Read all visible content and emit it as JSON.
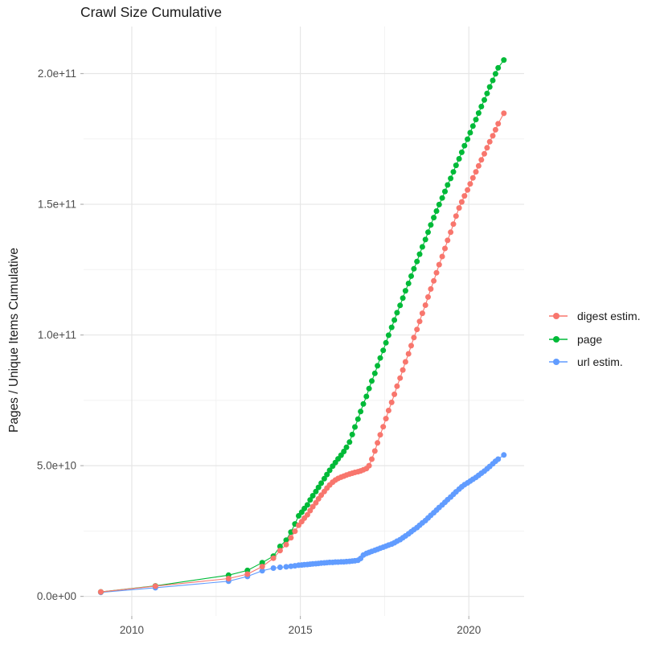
{
  "page": {
    "title": "Crawl Size Cumulative"
  },
  "y_axis_title": "Pages / Unique Items Cumulative",
  "legend": {
    "items": [
      {
        "label": "digest estim.",
        "color": "#F8766D"
      },
      {
        "label": "page",
        "color": "#00BA38"
      },
      {
        "label": "url estim.",
        "color": "#619CFF"
      }
    ]
  },
  "chart_data": {
    "type": "scatter",
    "title": "Crawl Size Cumulative",
    "xlabel": "",
    "ylabel": "Pages / Unique Items Cumulative",
    "legend_position": "right",
    "grid": "on",
    "values_unit": "1e9 (billions of pages / unique items)",
    "xlim": [
      2008.57,
      2021.64
    ],
    "ylim_e9": [
      -7.5,
      218
    ],
    "x_ticks": [
      {
        "label": "2010",
        "year": 2010
      },
      {
        "label": "2015",
        "year": 2015
      },
      {
        "label": "2020",
        "year": 2020
      }
    ],
    "x_minor": [
      2012.5,
      2017.5
    ],
    "y_ticks": [
      {
        "label": "0.0e+00",
        "value_e9": 0
      },
      {
        "label": "5.0e+10",
        "value_e9": 50
      },
      {
        "label": "1.0e+11",
        "value_e9": 100
      },
      {
        "label": "1.5e+11",
        "value_e9": 150
      },
      {
        "label": "2.0e+11",
        "value_e9": 200
      }
    ],
    "y_minor": [
      25,
      75,
      125,
      175
    ],
    "colors": {
      "major_grid": "#e6e6e6",
      "minor_grid": "#f2f2f2",
      "tick": "#b3b3b3",
      "axis_text": "#4d4d4d"
    },
    "series": [
      {
        "name": "url estim.",
        "color": "#619CFF",
        "points": [
          [
            2009.08,
            1.5
          ],
          [
            2010.7,
            3.3
          ],
          [
            2012.87,
            5.8
          ],
          [
            2013.43,
            7.6
          ],
          [
            2013.87,
            9.8
          ],
          [
            2014.2,
            10.8
          ],
          [
            2014.4,
            11.1
          ],
          [
            2014.58,
            11.3
          ],
          [
            2014.72,
            11.5
          ],
          [
            2014.84,
            11.7
          ],
          [
            2014.95,
            11.9
          ],
          [
            2015.04,
            12.0
          ],
          [
            2015.12,
            12.1
          ],
          [
            2015.21,
            12.2
          ],
          [
            2015.29,
            12.3
          ],
          [
            2015.37,
            12.4
          ],
          [
            2015.46,
            12.5
          ],
          [
            2015.54,
            12.6
          ],
          [
            2015.62,
            12.7
          ],
          [
            2015.71,
            12.8
          ],
          [
            2015.79,
            12.9
          ],
          [
            2015.87,
            13.0
          ],
          [
            2015.96,
            13.0
          ],
          [
            2016.04,
            13.1
          ],
          [
            2016.12,
            13.1
          ],
          [
            2016.21,
            13.2
          ],
          [
            2016.29,
            13.2
          ],
          [
            2016.37,
            13.3
          ],
          [
            2016.46,
            13.4
          ],
          [
            2016.54,
            13.5
          ],
          [
            2016.62,
            13.6
          ],
          [
            2016.71,
            13.8
          ],
          [
            2016.79,
            14.5
          ],
          [
            2016.87,
            15.8
          ],
          [
            2016.96,
            16.4
          ],
          [
            2017.04,
            16.8
          ],
          [
            2017.12,
            17.2
          ],
          [
            2017.21,
            17.6
          ],
          [
            2017.29,
            18.0
          ],
          [
            2017.37,
            18.4
          ],
          [
            2017.46,
            18.8
          ],
          [
            2017.54,
            19.2
          ],
          [
            2017.62,
            19.6
          ],
          [
            2017.71,
            20.0
          ],
          [
            2017.79,
            20.5
          ],
          [
            2017.87,
            21.1
          ],
          [
            2017.96,
            21.7
          ],
          [
            2018.04,
            22.4
          ],
          [
            2018.12,
            23.1
          ],
          [
            2018.21,
            23.9
          ],
          [
            2018.29,
            24.7
          ],
          [
            2018.37,
            25.5
          ],
          [
            2018.46,
            26.3
          ],
          [
            2018.54,
            27.2
          ],
          [
            2018.62,
            28.1
          ],
          [
            2018.71,
            29.0
          ],
          [
            2018.79,
            30.0
          ],
          [
            2018.87,
            31.0
          ],
          [
            2018.96,
            32.0
          ],
          [
            2019.04,
            33.0
          ],
          [
            2019.12,
            34.0
          ],
          [
            2019.21,
            35.0
          ],
          [
            2019.29,
            36.0
          ],
          [
            2019.37,
            37.0
          ],
          [
            2019.46,
            38.0
          ],
          [
            2019.54,
            39.0
          ],
          [
            2019.62,
            40.0
          ],
          [
            2019.71,
            41.0
          ],
          [
            2019.79,
            41.9
          ],
          [
            2019.87,
            42.7
          ],
          [
            2019.96,
            43.4
          ],
          [
            2020.04,
            44.1
          ],
          [
            2020.12,
            44.8
          ],
          [
            2020.21,
            45.5
          ],
          [
            2020.29,
            46.3
          ],
          [
            2020.37,
            47.1
          ],
          [
            2020.46,
            47.9
          ],
          [
            2020.54,
            48.8
          ],
          [
            2020.62,
            49.7
          ],
          [
            2020.71,
            50.7
          ],
          [
            2020.79,
            51.7
          ],
          [
            2020.87,
            52.5
          ],
          [
            2021.04,
            54.1
          ]
        ]
      },
      {
        "name": "page",
        "color": "#00BA38",
        "points": [
          [
            2009.08,
            1.7
          ],
          [
            2010.7,
            4.0
          ],
          [
            2012.87,
            8.1
          ],
          [
            2013.43,
            9.9
          ],
          [
            2013.87,
            12.9
          ],
          [
            2014.2,
            15.4
          ],
          [
            2014.4,
            19.1
          ],
          [
            2014.58,
            21.5
          ],
          [
            2014.72,
            24.6
          ],
          [
            2014.84,
            27.7
          ],
          [
            2014.95,
            30.8
          ],
          [
            2015.04,
            32.2
          ],
          [
            2015.12,
            33.6
          ],
          [
            2015.21,
            35.0
          ],
          [
            2015.29,
            36.9
          ],
          [
            2015.37,
            38.5
          ],
          [
            2015.46,
            40.1
          ],
          [
            2015.54,
            41.7
          ],
          [
            2015.62,
            43.3
          ],
          [
            2015.71,
            45.0
          ],
          [
            2015.79,
            46.6
          ],
          [
            2015.87,
            48.2
          ],
          [
            2015.96,
            49.8
          ],
          [
            2016.04,
            51.2
          ],
          [
            2016.12,
            52.6
          ],
          [
            2016.21,
            54.0
          ],
          [
            2016.29,
            55.4
          ],
          [
            2016.37,
            57.0
          ],
          [
            2016.46,
            59.0
          ],
          [
            2016.54,
            61.9
          ],
          [
            2016.62,
            64.8
          ],
          [
            2016.71,
            67.8
          ],
          [
            2016.79,
            70.7
          ],
          [
            2016.87,
            73.6
          ],
          [
            2016.96,
            76.5
          ],
          [
            2017.04,
            79.5
          ],
          [
            2017.12,
            82.4
          ],
          [
            2017.21,
            85.3
          ],
          [
            2017.29,
            88.2
          ],
          [
            2017.37,
            91.2
          ],
          [
            2017.46,
            94.1
          ],
          [
            2017.54,
            97.0
          ],
          [
            2017.62,
            99.9
          ],
          [
            2017.71,
            102.9
          ],
          [
            2017.79,
            105.7
          ],
          [
            2017.87,
            108.5
          ],
          [
            2017.96,
            111.3
          ],
          [
            2018.04,
            114.1
          ],
          [
            2018.12,
            116.9
          ],
          [
            2018.21,
            119.7
          ],
          [
            2018.29,
            122.5
          ],
          [
            2018.37,
            125.3
          ],
          [
            2018.46,
            128.1
          ],
          [
            2018.54,
            130.9
          ],
          [
            2018.62,
            133.7
          ],
          [
            2018.71,
            136.5
          ],
          [
            2018.79,
            139.3
          ],
          [
            2018.87,
            142.1
          ],
          [
            2018.96,
            144.9
          ],
          [
            2019.04,
            147.4
          ],
          [
            2019.12,
            149.9
          ],
          [
            2019.21,
            152.4
          ],
          [
            2019.29,
            154.9
          ],
          [
            2019.37,
            157.4
          ],
          [
            2019.46,
            159.9
          ],
          [
            2019.54,
            162.4
          ],
          [
            2019.62,
            164.9
          ],
          [
            2019.71,
            167.4
          ],
          [
            2019.79,
            169.9
          ],
          [
            2019.87,
            172.4
          ],
          [
            2019.96,
            174.9
          ],
          [
            2020.04,
            177.4
          ],
          [
            2020.12,
            179.9
          ],
          [
            2020.21,
            182.4
          ],
          [
            2020.29,
            184.9
          ],
          [
            2020.37,
            187.4
          ],
          [
            2020.46,
            189.9
          ],
          [
            2020.54,
            192.4
          ],
          [
            2020.62,
            194.9
          ],
          [
            2020.71,
            197.4
          ],
          [
            2020.79,
            199.9
          ],
          [
            2020.87,
            202.2
          ],
          [
            2021.04,
            205.2
          ]
        ]
      },
      {
        "name": "digest estim.",
        "color": "#F8766D",
        "points": [
          [
            2009.08,
            1.7
          ],
          [
            2010.7,
            3.9
          ],
          [
            2012.87,
            6.8
          ],
          [
            2013.43,
            8.5
          ],
          [
            2013.87,
            11.4
          ],
          [
            2014.2,
            14.6
          ],
          [
            2014.4,
            17.5
          ],
          [
            2014.58,
            19.8
          ],
          [
            2014.72,
            22.4
          ],
          [
            2014.84,
            24.9
          ],
          [
            2014.95,
            27.2
          ],
          [
            2015.04,
            28.6
          ],
          [
            2015.12,
            29.9
          ],
          [
            2015.21,
            31.2
          ],
          [
            2015.29,
            32.8
          ],
          [
            2015.37,
            34.3
          ],
          [
            2015.46,
            35.8
          ],
          [
            2015.54,
            37.3
          ],
          [
            2015.62,
            38.7
          ],
          [
            2015.71,
            40.1
          ],
          [
            2015.79,
            41.4
          ],
          [
            2015.87,
            42.6
          ],
          [
            2015.96,
            43.7
          ],
          [
            2016.04,
            44.5
          ],
          [
            2016.12,
            45.1
          ],
          [
            2016.21,
            45.6
          ],
          [
            2016.29,
            46.0
          ],
          [
            2016.37,
            46.4
          ],
          [
            2016.46,
            46.8
          ],
          [
            2016.54,
            47.1
          ],
          [
            2016.62,
            47.4
          ],
          [
            2016.71,
            47.7
          ],
          [
            2016.79,
            48.0
          ],
          [
            2016.87,
            48.4
          ],
          [
            2016.96,
            48.9
          ],
          [
            2017.04,
            50.0
          ],
          [
            2017.12,
            52.5
          ],
          [
            2017.21,
            55.6
          ],
          [
            2017.29,
            58.7
          ],
          [
            2017.37,
            61.8
          ],
          [
            2017.46,
            64.9
          ],
          [
            2017.54,
            68.0
          ],
          [
            2017.62,
            71.1
          ],
          [
            2017.71,
            74.2
          ],
          [
            2017.79,
            77.3
          ],
          [
            2017.87,
            80.4
          ],
          [
            2017.96,
            83.5
          ],
          [
            2018.04,
            86.6
          ],
          [
            2018.12,
            89.7
          ],
          [
            2018.21,
            92.8
          ],
          [
            2018.29,
            95.9
          ],
          [
            2018.37,
            99.0
          ],
          [
            2018.46,
            102.1
          ],
          [
            2018.54,
            105.2
          ],
          [
            2018.62,
            108.3
          ],
          [
            2018.71,
            111.4
          ],
          [
            2018.79,
            114.5
          ],
          [
            2018.87,
            117.6
          ],
          [
            2018.96,
            120.7
          ],
          [
            2019.04,
            123.8
          ],
          [
            2019.12,
            126.9
          ],
          [
            2019.21,
            130.0
          ],
          [
            2019.29,
            133.1
          ],
          [
            2019.37,
            136.2
          ],
          [
            2019.46,
            139.3
          ],
          [
            2019.54,
            142.4
          ],
          [
            2019.62,
            145.5
          ],
          [
            2019.71,
            148.6
          ],
          [
            2019.79,
            150.9
          ],
          [
            2019.87,
            153.2
          ],
          [
            2019.96,
            155.5
          ],
          [
            2020.04,
            157.8
          ],
          [
            2020.12,
            160.1
          ],
          [
            2020.21,
            162.4
          ],
          [
            2020.29,
            164.7
          ],
          [
            2020.37,
            167.0
          ],
          [
            2020.46,
            169.3
          ],
          [
            2020.54,
            171.6
          ],
          [
            2020.62,
            173.9
          ],
          [
            2020.71,
            176.2
          ],
          [
            2020.79,
            178.5
          ],
          [
            2020.87,
            180.8
          ],
          [
            2021.04,
            184.8
          ]
        ]
      }
    ]
  }
}
